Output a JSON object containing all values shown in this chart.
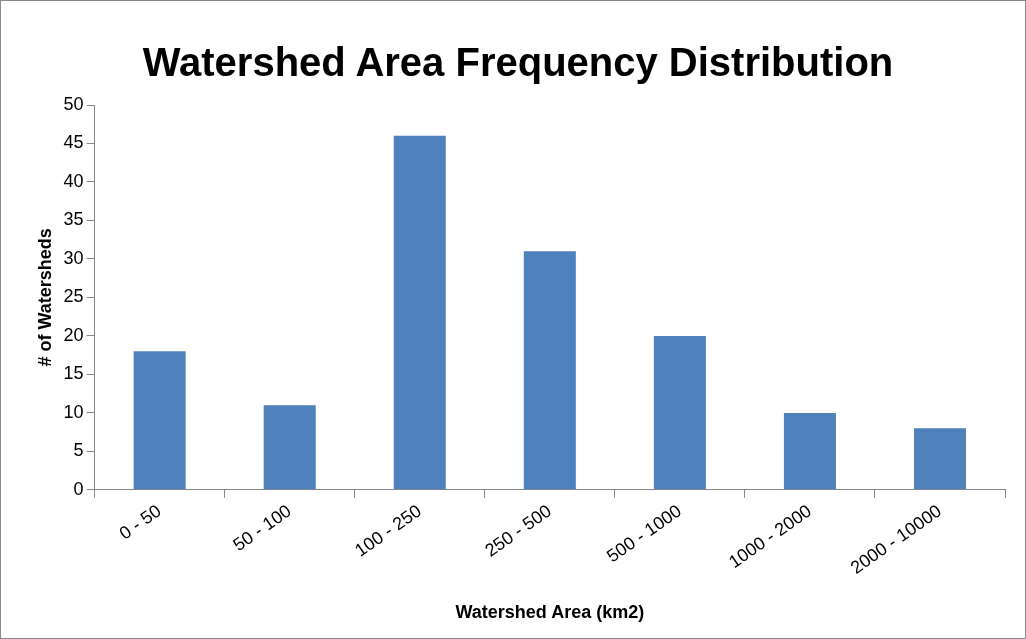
{
  "chart_data": {
    "type": "bar",
    "title": "Watershed Area Frequency Distribution",
    "xlabel": "Watershed Area (km2)",
    "ylabel": "# of Watersheds",
    "categories": [
      "0 - 50",
      "50 - 100",
      "100 - 250",
      "250 - 500",
      "500 - 1000",
      "1000 - 2000",
      "2000 - 10000"
    ],
    "values": [
      18,
      11,
      46,
      31,
      20,
      10,
      8
    ],
    "color": "#4f81bd",
    "ylim": [
      0,
      50
    ],
    "yticks": [
      0,
      5,
      10,
      15,
      20,
      25,
      30,
      35,
      40,
      45,
      50
    ],
    "grid": false,
    "legend": false
  }
}
